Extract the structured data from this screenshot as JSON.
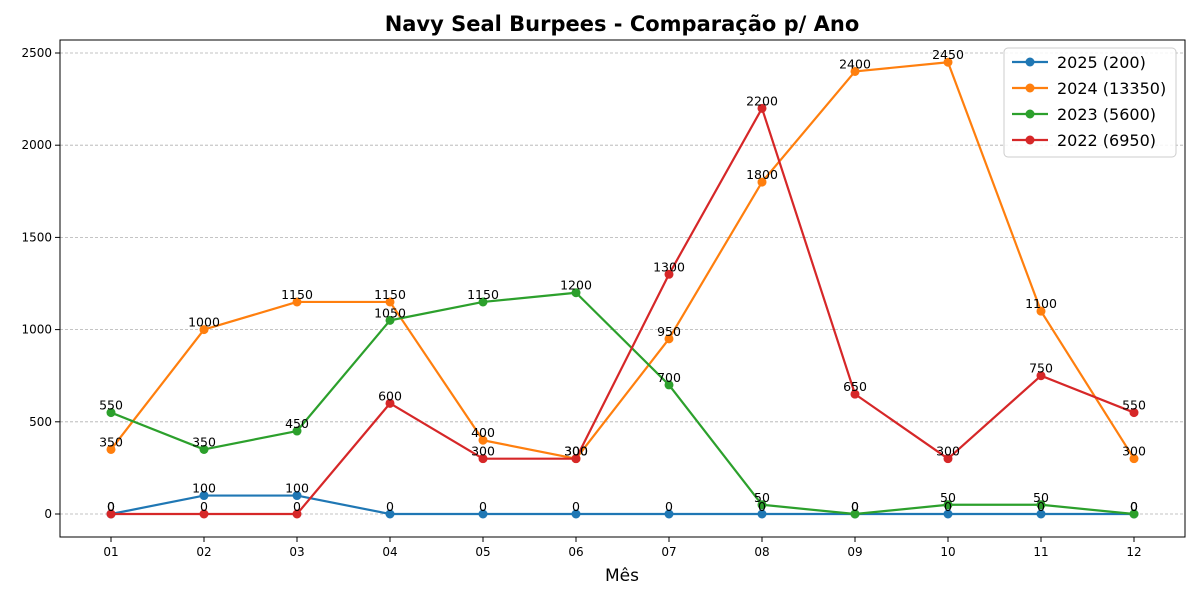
{
  "chart_data": {
    "type": "line",
    "title": "Navy Seal Burpees - Comparação p/ Ano",
    "xlabel": "Mês",
    "ylabel": "",
    "categories": [
      "01",
      "02",
      "03",
      "04",
      "05",
      "06",
      "07",
      "08",
      "09",
      "10",
      "11",
      "12"
    ],
    "ylim": [
      -120,
      2570
    ],
    "yticks": [
      0,
      500,
      1000,
      1500,
      2000,
      2500
    ],
    "grid": "horizontal dashed",
    "legend_position": "top-right",
    "series": [
      {
        "name": "2025 (200)",
        "color": "#1f77b4",
        "values": [
          0,
          100,
          100,
          0,
          0,
          0,
          0,
          0,
          0,
          0,
          0,
          0
        ]
      },
      {
        "name": "2024 (13350)",
        "color": "#ff7f0e",
        "values": [
          350,
          1000,
          1150,
          1150,
          400,
          300,
          950,
          1800,
          2400,
          2450,
          1100,
          300
        ]
      },
      {
        "name": "2023 (5600)",
        "color": "#2ca02c",
        "values": [
          550,
          350,
          450,
          1050,
          1150,
          1200,
          700,
          50,
          0,
          50,
          50,
          0
        ]
      },
      {
        "name": "2022 (6950)",
        "color": "#d62728",
        "values": [
          0,
          0,
          0,
          600,
          300,
          300,
          1300,
          2200,
          650,
          300,
          750,
          550
        ]
      }
    ]
  }
}
